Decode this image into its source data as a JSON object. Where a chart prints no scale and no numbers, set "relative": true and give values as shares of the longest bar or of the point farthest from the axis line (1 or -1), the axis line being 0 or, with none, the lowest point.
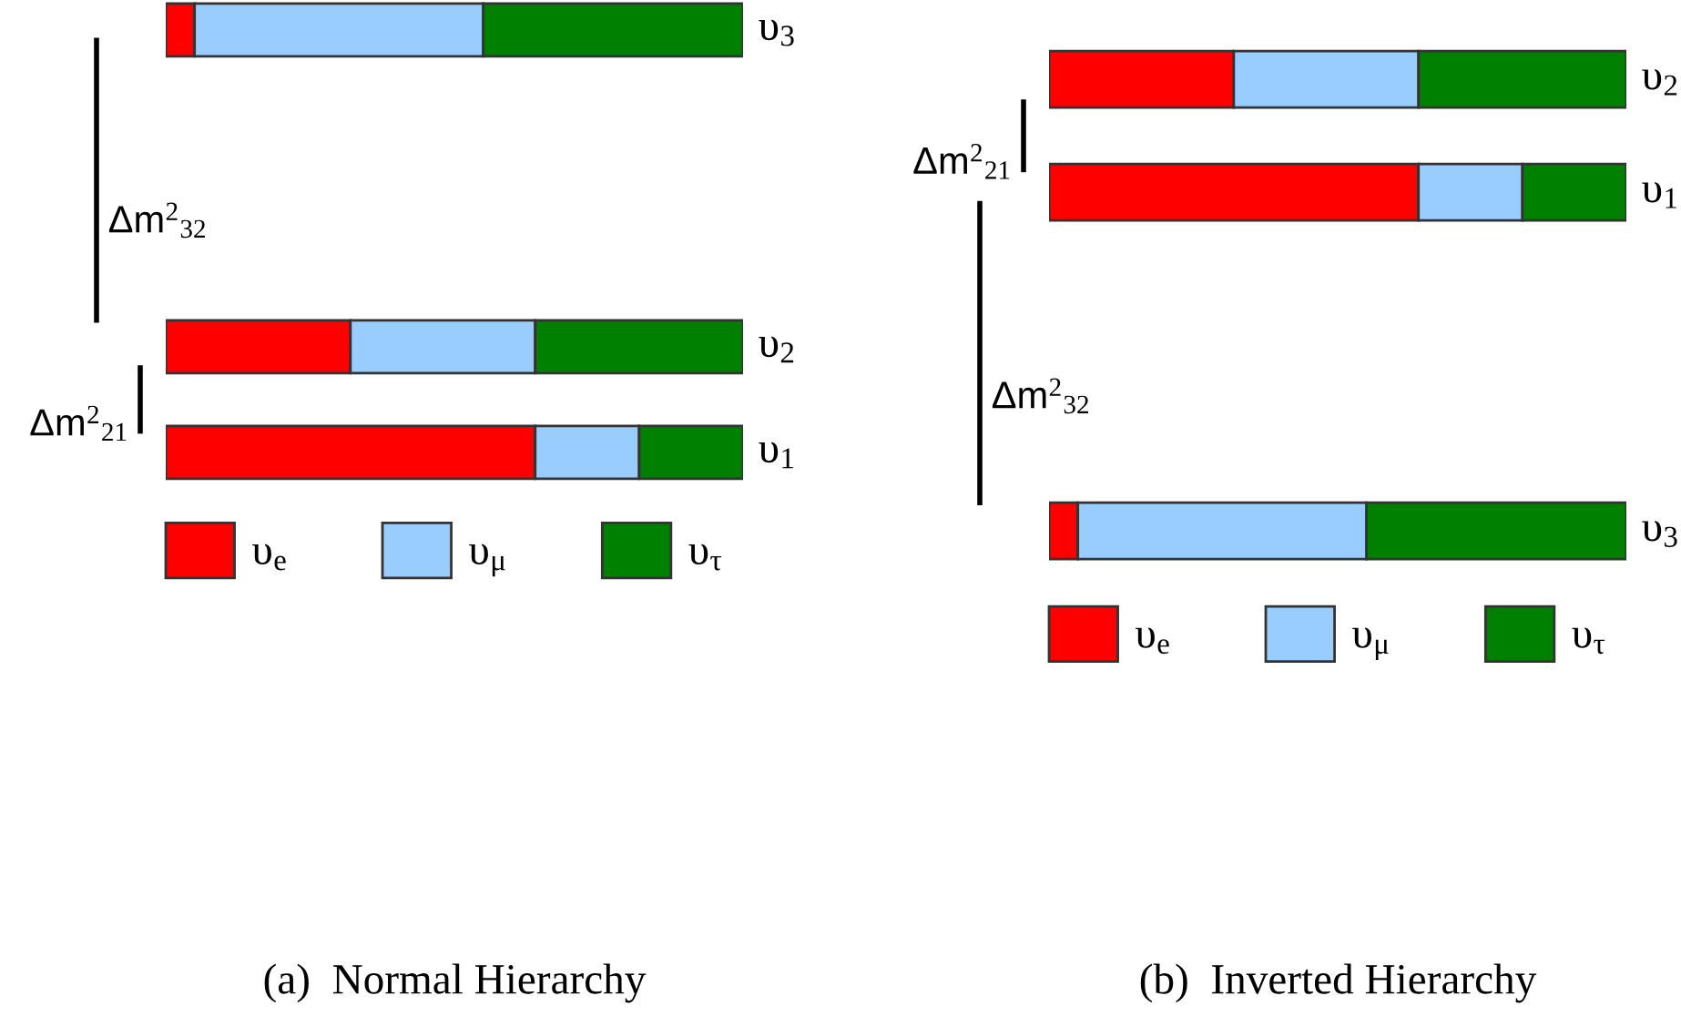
{
  "chart_data": [
    {
      "type": "bar",
      "orientation": "horizontal",
      "stacked": true,
      "relative": true,
      "title": "(a)  Normal Hierarchy",
      "categories": [
        "υ$_{3}$",
        null,
        null,
        "υ$_{2}$",
        "υ$_{1}$"
      ],
      "series": [
        {
          "name": "υ$_{e}$",
          "color": "#ff0000",
          "values": [
            0.05,
            null,
            null,
            0.32,
            0.64
          ]
        },
        {
          "name": "υ$_{μ}$",
          "color": "#99ccff",
          "values": [
            0.5,
            null,
            null,
            0.32,
            0.18
          ]
        },
        {
          "name": "υ$_{τ}$",
          "color": "#008000",
          "values": [
            0.45,
            null,
            null,
            0.36,
            0.18
          ]
        }
      ],
      "annotations": [
        "Δm$^{2}$$_{32}$",
        "Δm$^{2}$$_{21}$"
      ],
      "legend": "bottom",
      "tick_labels": "y"
    },
    {
      "type": "bar",
      "orientation": "horizontal",
      "stacked": true,
      "relative": true,
      "title": "(b)  Inverted Hierarchy",
      "categories": [
        "υ$_{2}$",
        "υ$_{1}$",
        null,
        null,
        "υ$_{3}$"
      ],
      "series": [
        {
          "name": "υ$_{e}$",
          "color": "#ff0000",
          "values": [
            0.32,
            0.64,
            null,
            null,
            0.05
          ]
        },
        {
          "name": "υ$_{μ}$",
          "color": "#99ccff",
          "values": [
            0.32,
            0.18,
            null,
            null,
            0.5
          ]
        },
        {
          "name": "υ$_{τ}$",
          "color": "#008000",
          "values": [
            0.36,
            0.18,
            null,
            null,
            0.45
          ]
        }
      ],
      "annotations": [
        "Δm$^{2}$$_{21}$",
        "Δm$^{2}$$_{32}$"
      ],
      "legend": "bottom",
      "tick_labels": "y"
    }
  ]
}
